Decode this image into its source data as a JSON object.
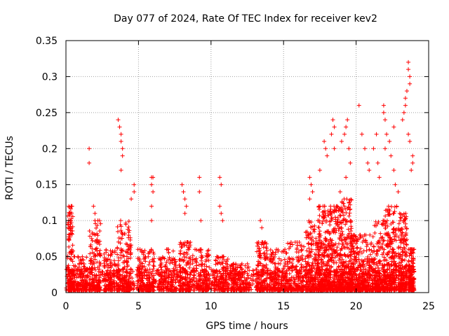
{
  "chart_data": {
    "type": "scatter",
    "title": "Day 077 of 2024, Rate Of TEC Index for receiver kev2",
    "xlabel": "GPS time / hours",
    "ylabel": "ROTI / TECUs",
    "xlim": [
      0,
      25
    ],
    "ylim": [
      0,
      0.35
    ],
    "xticks": [
      0,
      5,
      10,
      15,
      20,
      25
    ],
    "xtick_labels": [
      "0",
      "5",
      "10",
      "15",
      "20",
      "25"
    ],
    "yticks": [
      0,
      0.05,
      0.1,
      0.15,
      0.2,
      0.25,
      0.3,
      0.35
    ],
    "ytick_labels": [
      "0",
      "0.05",
      "0.1",
      "0.15",
      "0.2",
      "0.25",
      "0.3",
      "0.35"
    ],
    "grid": true,
    "marker": "+",
    "marker_color": "#ff0000",
    "series": [
      {
        "name": "ROTI",
        "outliers": [
          [
            0.2,
            0.12
          ],
          [
            0.25,
            0.11
          ],
          [
            0.3,
            0.1
          ],
          [
            0.15,
            0.09
          ],
          [
            1.6,
            0.2
          ],
          [
            1.6,
            0.18
          ],
          [
            1.9,
            0.12
          ],
          [
            2.0,
            0.11
          ],
          [
            2.2,
            0.1
          ],
          [
            3.6,
            0.24
          ],
          [
            3.7,
            0.23
          ],
          [
            3.8,
            0.22
          ],
          [
            3.8,
            0.21
          ],
          [
            3.9,
            0.2
          ],
          [
            3.9,
            0.19
          ],
          [
            3.8,
            0.17
          ],
          [
            4.5,
            0.13
          ],
          [
            4.7,
            0.15
          ],
          [
            4.7,
            0.14
          ],
          [
            5.9,
            0.16
          ],
          [
            6.0,
            0.16
          ],
          [
            5.9,
            0.15
          ],
          [
            6.0,
            0.14
          ],
          [
            5.9,
            0.12
          ],
          [
            5.9,
            0.1
          ],
          [
            8.0,
            0.15
          ],
          [
            8.1,
            0.14
          ],
          [
            8.2,
            0.13
          ],
          [
            8.3,
            0.12
          ],
          [
            8.2,
            0.11
          ],
          [
            9.2,
            0.16
          ],
          [
            9.2,
            0.14
          ],
          [
            9.3,
            0.1
          ],
          [
            10.6,
            0.16
          ],
          [
            10.7,
            0.15
          ],
          [
            10.6,
            0.12
          ],
          [
            10.7,
            0.11
          ],
          [
            10.8,
            0.1
          ],
          [
            13.4,
            0.1
          ],
          [
            13.5,
            0.09
          ],
          [
            16.8,
            0.16
          ],
          [
            16.9,
            0.15
          ],
          [
            17.0,
            0.14
          ],
          [
            16.8,
            0.13
          ],
          [
            17.5,
            0.17
          ],
          [
            17.8,
            0.21
          ],
          [
            17.9,
            0.2
          ],
          [
            18.0,
            0.19
          ],
          [
            18.4,
            0.24
          ],
          [
            18.5,
            0.23
          ],
          [
            18.3,
            0.22
          ],
          [
            18.5,
            0.2
          ],
          [
            19.0,
            0.21
          ],
          [
            19.2,
            0.22
          ],
          [
            19.4,
            0.24
          ],
          [
            19.3,
            0.23
          ],
          [
            19.5,
            0.2
          ],
          [
            19.6,
            0.18
          ],
          [
            19.3,
            0.16
          ],
          [
            18.9,
            0.14
          ],
          [
            20.2,
            0.26
          ],
          [
            20.4,
            0.22
          ],
          [
            20.6,
            0.2
          ],
          [
            20.8,
            0.18
          ],
          [
            20.9,
            0.17
          ],
          [
            21.2,
            0.2
          ],
          [
            21.4,
            0.22
          ],
          [
            21.5,
            0.18
          ],
          [
            21.6,
            0.16
          ],
          [
            21.9,
            0.25
          ],
          [
            21.9,
            0.26
          ],
          [
            22.0,
            0.24
          ],
          [
            22.1,
            0.22
          ],
          [
            22.0,
            0.2
          ],
          [
            22.3,
            0.21
          ],
          [
            22.4,
            0.19
          ],
          [
            22.6,
            0.23
          ],
          [
            22.6,
            0.17
          ],
          [
            22.7,
            0.15
          ],
          [
            22.9,
            0.14
          ],
          [
            22.8,
            0.12
          ],
          [
            23.2,
            0.24
          ],
          [
            23.3,
            0.25
          ],
          [
            23.4,
            0.26
          ],
          [
            23.4,
            0.27
          ],
          [
            23.5,
            0.28
          ],
          [
            23.6,
            0.31
          ],
          [
            23.6,
            0.32
          ],
          [
            23.7,
            0.3
          ],
          [
            23.7,
            0.29
          ],
          [
            23.6,
            0.22
          ],
          [
            23.7,
            0.21
          ],
          [
            23.8,
            0.17
          ],
          [
            23.9,
            0.19
          ],
          [
            23.9,
            0.18
          ]
        ],
        "clusters": [
          {
            "x": 0.3,
            "width": 0.4,
            "ymax": 0.12,
            "count": 140
          },
          {
            "x": 1.0,
            "width": 1.0,
            "ymax": 0.05,
            "count": 120
          },
          {
            "x": 2.0,
            "width": 0.8,
            "ymax": 0.1,
            "count": 160
          },
          {
            "x": 3.0,
            "width": 0.8,
            "ymax": 0.06,
            "count": 120
          },
          {
            "x": 4.0,
            "width": 1.0,
            "ymax": 0.1,
            "count": 200
          },
          {
            "x": 5.5,
            "width": 1.2,
            "ymax": 0.06,
            "count": 160
          },
          {
            "x": 7.0,
            "width": 1.2,
            "ymax": 0.06,
            "count": 140
          },
          {
            "x": 8.2,
            "width": 0.8,
            "ymax": 0.07,
            "count": 140
          },
          {
            "x": 9.3,
            "width": 1.2,
            "ymax": 0.06,
            "count": 140
          },
          {
            "x": 10.7,
            "width": 1.0,
            "ymax": 0.05,
            "count": 130
          },
          {
            "x": 12.0,
            "width": 1.4,
            "ymax": 0.04,
            "count": 150
          },
          {
            "x": 13.5,
            "width": 0.8,
            "ymax": 0.07,
            "count": 150
          },
          {
            "x": 14.6,
            "width": 1.2,
            "ymax": 0.06,
            "count": 160
          },
          {
            "x": 15.8,
            "width": 1.2,
            "ymax": 0.07,
            "count": 180
          },
          {
            "x": 17.0,
            "width": 1.0,
            "ymax": 0.1,
            "count": 230
          },
          {
            "x": 17.8,
            "width": 0.8,
            "ymax": 0.12,
            "count": 240
          },
          {
            "x": 18.6,
            "width": 0.8,
            "ymax": 0.12,
            "count": 240
          },
          {
            "x": 19.3,
            "width": 0.8,
            "ymax": 0.13,
            "count": 240
          },
          {
            "x": 20.0,
            "width": 0.8,
            "ymax": 0.08,
            "count": 180
          },
          {
            "x": 20.8,
            "width": 0.8,
            "ymax": 0.08,
            "count": 170
          },
          {
            "x": 21.6,
            "width": 0.8,
            "ymax": 0.1,
            "count": 200
          },
          {
            "x": 22.4,
            "width": 0.8,
            "ymax": 0.12,
            "count": 220
          },
          {
            "x": 23.2,
            "width": 0.6,
            "ymax": 0.11,
            "count": 200
          },
          {
            "x": 23.8,
            "width": 0.4,
            "ymax": 0.06,
            "count": 140
          }
        ]
      }
    ]
  }
}
